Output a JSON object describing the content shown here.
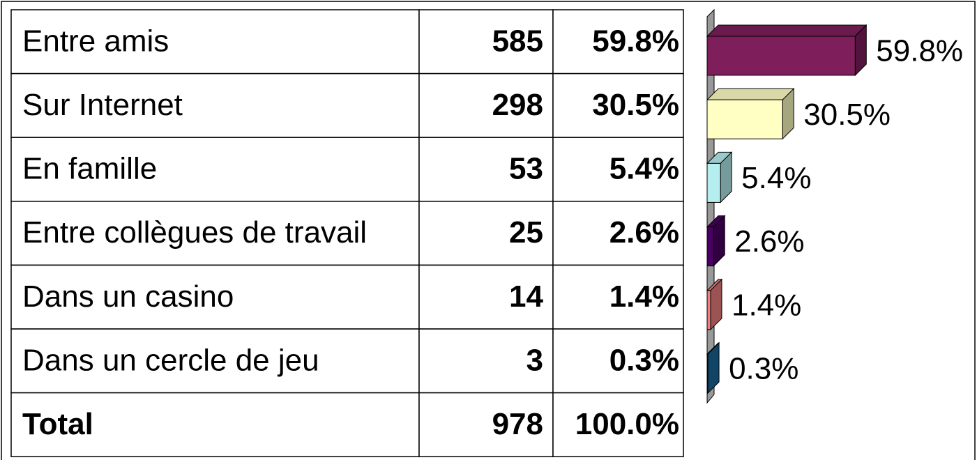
{
  "chart_data": {
    "type": "bar",
    "orientation": "horizontal",
    "categories": [
      "Entre amis",
      "Sur Internet",
      "En famille",
      "Entre collègues de travail",
      "Dans un casino",
      "Dans un cercle de jeu"
    ],
    "counts": [
      585,
      298,
      53,
      25,
      14,
      3
    ],
    "values": [
      59.8,
      30.5,
      5.4,
      2.6,
      1.4,
      0.3
    ],
    "value_labels": [
      "59.8%",
      "30.5%",
      "5.4%",
      "2.6%",
      "1.4%",
      "0.3%"
    ],
    "colors": [
      "#7e1f5c",
      "#ffffc4",
      "#b6eef0",
      "#4a0062",
      "#f08080",
      "#1a6a9c"
    ],
    "total": {
      "label": "Total",
      "count": 978,
      "value": 100.0,
      "value_label": "100.0%"
    }
  }
}
